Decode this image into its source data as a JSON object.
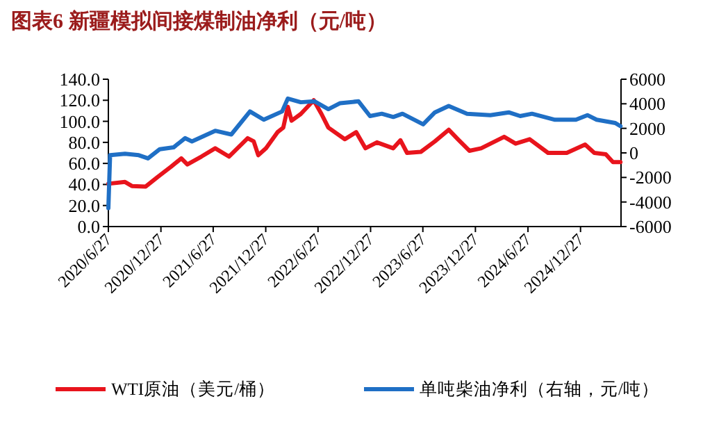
{
  "chart_data": {
    "type": "line",
    "title": "图表6 新疆模拟间接煤制油净利（元/吨）",
    "xlim": [
      "2020-06-27",
      "2025-05-17"
    ],
    "xticks": [
      {
        "value": "2020-06-27",
        "label": "2020/6/27"
      },
      {
        "value": "2020-12-27",
        "label": "2020/12/27"
      },
      {
        "value": "2021-06-27",
        "label": "2021/6/27"
      },
      {
        "value": "2021-12-27",
        "label": "2021/12/27"
      },
      {
        "value": "2022-06-27",
        "label": "2022/6/27"
      },
      {
        "value": "2022-12-27",
        "label": "2022/12/27"
      },
      {
        "value": "2023-06-27",
        "label": "2023/6/27"
      },
      {
        "value": "2023-12-27",
        "label": "2023/12/27"
      },
      {
        "value": "2024-06-27",
        "label": "2024/6/27"
      },
      {
        "value": "2024-12-27",
        "label": "2024/12/27"
      }
    ],
    "ylim": [
      0,
      140
    ],
    "yticks": [
      {
        "value": 0,
        "label": "0.0"
      },
      {
        "value": 20,
        "label": "20.0"
      },
      {
        "value": 40,
        "label": "40.0"
      },
      {
        "value": 60,
        "label": "60.0"
      },
      {
        "value": 80,
        "label": "80.0"
      },
      {
        "value": 100,
        "label": "100.0"
      },
      {
        "value": 120,
        "label": "120.0"
      },
      {
        "value": 140,
        "label": "140.0"
      }
    ],
    "y2lim": [
      -6000,
      6000
    ],
    "y2ticks": [
      -6000,
      -4000,
      -2000,
      0,
      2000,
      4000,
      6000
    ],
    "grid": false,
    "legend": "bottom",
    "line_style": "solid",
    "marker": "none",
    "series": [
      {
        "name": "WTI原油（美元/桶）",
        "color": "#e8141c",
        "x": [
          "2020-06-27",
          "2020-08-24",
          "2020-09-17",
          "2020-11-04",
          "2020-12-15",
          "2021-02-01",
          "2021-03-08",
          "2021-03-29",
          "2021-05-17",
          "2021-07-04",
          "2021-08-21",
          "2021-10-25",
          "2021-11-15",
          "2021-12-01",
          "2021-12-28",
          "2022-02-06",
          "2022-02-26",
          "2022-03-14",
          "2022-03-27",
          "2022-04-28",
          "2022-06-12",
          "2022-07-09",
          "2022-08-02",
          "2022-09-28",
          "2022-11-07",
          "2022-12-09",
          "2023-01-18",
          "2023-03-16",
          "2023-04-10",
          "2023-05-03",
          "2023-06-20",
          "2023-08-08",
          "2023-09-25",
          "2023-10-27",
          "2023-12-06",
          "2024-01-16",
          "2024-04-05",
          "2024-05-15",
          "2024-07-03",
          "2024-09-05",
          "2024-11-09",
          "2025-01-12",
          "2025-02-13",
          "2025-03-25",
          "2025-04-19",
          "2025-05-15"
        ],
        "values": [
          40.7,
          42.4,
          38.5,
          38,
          47,
          57,
          64.8,
          59,
          66.5,
          74.4,
          66.5,
          84,
          81,
          67.8,
          74.4,
          89.7,
          94,
          113.8,
          100.6,
          107,
          120,
          107,
          94,
          83,
          89.7,
          74.4,
          80,
          74.4,
          82,
          70,
          71,
          81,
          92,
          83,
          72,
          74.4,
          85.3,
          78.8,
          83,
          70,
          70,
          77.9,
          70,
          68.7,
          61.3,
          61.3
        ]
      },
      {
        "name": "单吨柴油净利（右轴，元/吨）",
        "color": "#1f6fc5",
        "axis": "y2",
        "x": [
          "2020-06-27",
          "2020-07-03",
          "2020-08-24",
          "2020-10-11",
          "2020-11-12",
          "2020-12-23",
          "2021-02-09",
          "2021-03-21",
          "2021-04-14",
          "2021-07-04",
          "2021-08-29",
          "2021-11-02",
          "2021-12-20",
          "2022-02-22",
          "2022-03-14",
          "2022-04-28",
          "2022-06-15",
          "2022-08-02",
          "2022-09-12",
          "2022-11-15",
          "2022-12-25",
          "2023-02-04",
          "2023-03-16",
          "2023-04-17",
          "2023-06-28",
          "2023-08-08",
          "2023-09-25",
          "2023-11-28",
          "2024-02-17",
          "2024-04-21",
          "2024-05-31",
          "2024-07-11",
          "2024-09-29",
          "2024-12-11",
          "2025-01-20",
          "2025-02-21",
          "2025-04-27",
          "2025-05-15"
        ],
        "values": [
          -4500,
          -187,
          -75,
          -187,
          -450,
          300,
          450,
          1200,
          938,
          1800,
          1500,
          3375,
          2700,
          3375,
          4425,
          4125,
          4200,
          3563,
          4050,
          4200,
          3000,
          3188,
          2925,
          3188,
          2325,
          3300,
          3825,
          3188,
          3075,
          3300,
          3000,
          3188,
          2700,
          2700,
          3075,
          2700,
          2438,
          2175
        ]
      }
    ]
  }
}
